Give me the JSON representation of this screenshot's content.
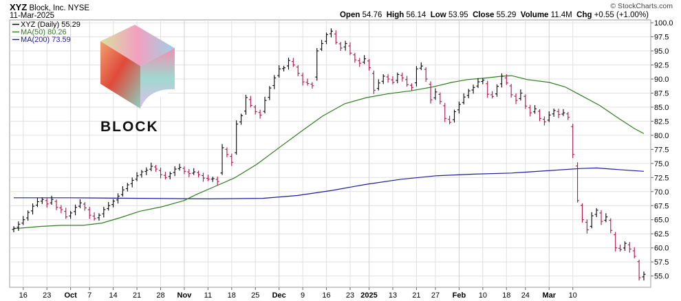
{
  "header": {
    "symbol": "XYZ",
    "company": "Block, Inc.",
    "exchange": "NYSE",
    "date": "11-Mar-2025",
    "open_label": "Open",
    "open_value": "54.76",
    "high_label": "High",
    "high_value": "56.14",
    "low_label": "Low",
    "low_value": "53.95",
    "close_label": "Close",
    "close_value": "55.29",
    "volume_label": "Volume",
    "volume_value": "11.4M",
    "chg_label": "Chg",
    "chg_value": "+0.55 (+1.00%)",
    "copyright": "© StockCharts.com"
  },
  "logo": {
    "wordmark": "BLOCK"
  },
  "legend": [
    {
      "text": "XYZ (Daily) 55.29",
      "color": "#000000"
    },
    {
      "text": "MA(50) 80.26",
      "color": "#2e7d1f"
    },
    {
      "text": "MA(200) 73.59",
      "color": "#1a1aa0"
    }
  ],
  "colors": {
    "up": "#000000",
    "down": "#b0104a",
    "ma50": "#2e7d1f",
    "ma200": "#1a1aa0",
    "grid": "#e0e0e0"
  },
  "chart_data": {
    "type": "ohlc",
    "title": "XYZ Block, Inc. NYSE",
    "ylim": [
      53.0,
      100.5
    ],
    "y_ticks": [
      55.0,
      57.5,
      60.0,
      62.5,
      65.0,
      67.5,
      70.0,
      72.5,
      75.0,
      77.5,
      80.0,
      82.5,
      85.0,
      87.5,
      90.0,
      92.5,
      95.0,
      97.5,
      100.0
    ],
    "x_labels": [
      {
        "label": "16",
        "bold": false
      },
      {
        "label": "23",
        "bold": false
      },
      {
        "label": "Oct",
        "bold": true
      },
      {
        "label": "7",
        "bold": false
      },
      {
        "label": "14",
        "bold": false
      },
      {
        "label": "21",
        "bold": false
      },
      {
        "label": "28",
        "bold": false
      },
      {
        "label": "Nov",
        "bold": true
      },
      {
        "label": "11",
        "bold": false
      },
      {
        "label": "18",
        "bold": false
      },
      {
        "label": "25",
        "bold": false
      },
      {
        "label": "Dec",
        "bold": true
      },
      {
        "label": "9",
        "bold": false
      },
      {
        "label": "16",
        "bold": false
      },
      {
        "label": "23",
        "bold": false
      },
      {
        "label": "2025",
        "bold": true
      },
      {
        "label": "13",
        "bold": false
      },
      {
        "label": "21",
        "bold": false
      },
      {
        "label": "27",
        "bold": false
      },
      {
        "label": "Feb",
        "bold": true
      },
      {
        "label": "10",
        "bold": false
      },
      {
        "label": "18",
        "bold": false
      },
      {
        "label": "24",
        "bold": false
      },
      {
        "label": "Mar",
        "bold": true
      },
      {
        "label": "10",
        "bold": false
      }
    ],
    "x_label_bar_index": [
      2,
      7,
      12,
      16,
      21,
      26,
      31,
      36,
      41,
      46,
      51,
      56,
      61,
      66,
      71,
      75,
      80,
      85,
      89,
      94,
      99,
      104,
      108,
      113,
      118
    ],
    "closes": [
      63.5,
      64.2,
      65.0,
      66.3,
      67.4,
      68.2,
      68.6,
      67.8,
      68.6,
      67.2,
      66.8,
      65.5,
      66.2,
      67.2,
      68.0,
      67.1,
      65.8,
      65.2,
      65.8,
      66.8,
      67.5,
      68.3,
      69.2,
      70.3,
      71.2,
      72.0,
      72.8,
      73.5,
      73.8,
      74.5,
      74.0,
      73.0,
      72.5,
      73.2,
      74.0,
      74.3,
      73.6,
      73.2,
      73.5,
      73.0,
      72.4,
      72.2,
      72.3,
      71.8,
      77.8,
      76.6,
      75.2,
      82.0,
      83.5,
      86.7,
      85.3,
      84.2,
      83.6,
      86.2,
      88.4,
      90.2,
      91.8,
      92.0,
      93.3,
      92.5,
      91.0,
      89.5,
      89.2,
      88.8,
      95.0,
      96.3,
      97.9,
      98.5,
      96.5,
      95.5,
      96.3,
      94.6,
      93.4,
      92.8,
      93.6,
      92.0,
      88.0,
      89.3,
      90.5,
      90.0,
      89.4,
      90.8,
      90.2,
      89.0,
      88.5,
      91.8,
      92.3,
      90.0,
      86.3,
      87.7,
      86.0,
      83.0,
      82.3,
      84.2,
      85.5,
      86.8,
      87.9,
      88.5,
      89.5,
      89.8,
      87.3,
      86.9,
      88.7,
      90.5,
      89.3,
      87.2,
      86.2,
      87.5,
      85.2,
      84.0,
      84.7,
      83.0,
      82.4,
      83.6,
      84.4,
      83.7,
      84.0,
      83.2,
      76.6,
      68.4,
      65.0,
      63.2,
      65.7,
      66.7,
      64.7,
      65.5,
      63.1,
      60.0,
      59.7,
      60.8,
      59.8,
      58.5,
      54.7,
      55.3
    ],
    "ma50": [
      [
        0,
        63.4
      ],
      [
        8,
        63.8
      ],
      [
        15,
        64.0
      ],
      [
        22,
        64.0
      ],
      [
        28,
        64.4
      ],
      [
        34,
        65.4
      ],
      [
        40,
        66.5
      ],
      [
        47,
        67.3
      ],
      [
        54,
        68.4
      ],
      [
        58,
        69.5
      ],
      [
        63,
        70.7
      ],
      [
        70,
        72.4
      ],
      [
        77,
        74.8
      ],
      [
        84,
        77.7
      ],
      [
        91,
        80.6
      ],
      [
        98,
        83.4
      ],
      [
        105,
        85.6
      ],
      [
        112,
        86.7
      ],
      [
        119,
        87.4
      ],
      [
        126,
        87.9
      ],
      [
        133,
        88.6
      ],
      [
        139,
        89.4
      ],
      [
        144,
        89.9
      ],
      [
        150,
        90.2
      ],
      [
        155,
        90.5
      ],
      [
        158,
        90.6
      ],
      [
        163,
        89.9
      ],
      [
        170,
        89.4
      ],
      [
        175,
        88.6
      ],
      [
        180,
        87.1
      ],
      [
        186,
        85.3
      ],
      [
        192,
        83.0
      ],
      [
        197,
        81.2
      ],
      [
        200,
        80.3
      ]
    ],
    "ma200": [
      [
        0,
        68.9
      ],
      [
        18,
        68.9
      ],
      [
        40,
        68.8
      ],
      [
        62,
        68.7
      ],
      [
        79,
        68.8
      ],
      [
        90,
        69.3
      ],
      [
        101,
        70.2
      ],
      [
        112,
        71.3
      ],
      [
        123,
        72.2
      ],
      [
        134,
        72.8
      ],
      [
        146,
        73.1
      ],
      [
        158,
        73.3
      ],
      [
        169,
        73.7
      ],
      [
        180,
        74.1
      ],
      [
        185,
        74.2
      ],
      [
        192,
        73.9
      ],
      [
        200,
        73.6
      ]
    ],
    "ma_x_range": [
      0,
      200
    ]
  }
}
